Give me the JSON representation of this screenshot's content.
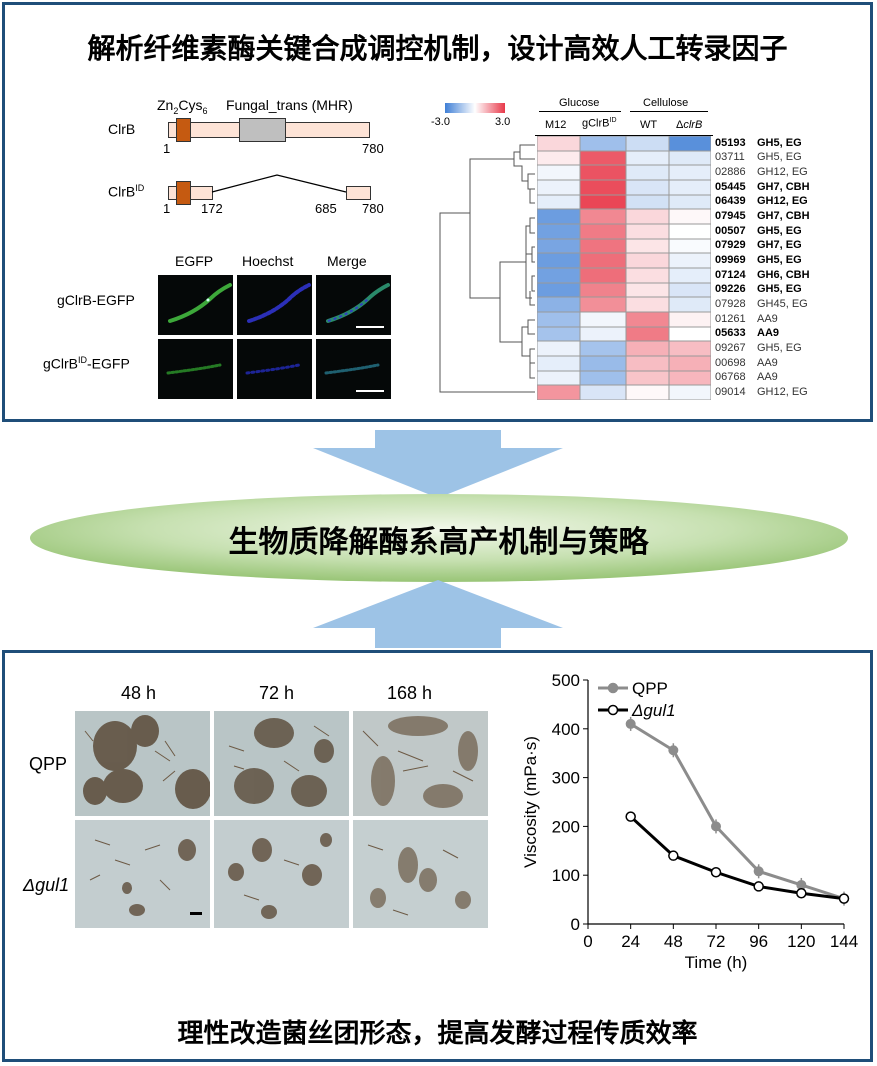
{
  "top_title": "解析纤维素酶关键合成调控机制，设计高效人工转录因子",
  "center_title": "生物质降解酶系高产机制与策略",
  "bottom_title": "理性改造菌丝团形态，提高发酵过程传质效率",
  "domain_diagram": {
    "zn_label": "Zn",
    "zn_sub": "2",
    "cys_label": "Cys",
    "cys_sub": "6",
    "fungal_label": "Fungal_trans (MHR)",
    "clrb_label": "ClrB",
    "clrbid_label": "ClrB",
    "clrbid_sup": "ID",
    "clrb_start": "1",
    "clrb_end": "780",
    "clrbid_start": "1",
    "clrbid_172": "172",
    "clrbid_685": "685",
    "clrbid_end": "780"
  },
  "microscopy": {
    "columns": [
      "EGFP",
      "Hoechst",
      "Merge"
    ],
    "row1": "gClrB-EGFP",
    "row2_prefix": "gClrB",
    "row2_sup": "ID",
    "row2_suffix": "-EGFP"
  },
  "heatmap": {
    "scale_min": "-3.0",
    "scale_max": "3.0",
    "group1": "Glucose",
    "group2": "Cellulose",
    "columns": [
      "M12",
      "gClrB",
      "WT",
      "Δ"
    ],
    "col2_sup": "ID",
    "col4_italic": "clrB",
    "rows": [
      {
        "id": "05193",
        "name": "GH5, EG",
        "bold": true,
        "v": [
          0.6,
          -1.5,
          -0.8,
          -2.6
        ]
      },
      {
        "id": "03711",
        "name": "GH5, EG",
        "bold": false,
        "v": [
          0.3,
          2.5,
          -0.4,
          -0.5
        ]
      },
      {
        "id": "02886",
        "name": "GH12, EG",
        "bold": false,
        "v": [
          -0.2,
          2.6,
          -0.5,
          -0.4
        ]
      },
      {
        "id": "05445",
        "name": "GH7, CBH",
        "bold": true,
        "v": [
          -0.3,
          2.7,
          -0.6,
          -0.4
        ]
      },
      {
        "id": "06439",
        "name": "GH12, EG",
        "bold": true,
        "v": [
          -0.4,
          2.8,
          -0.7,
          -0.5
        ]
      },
      {
        "id": "07945",
        "name": "GH7, CBH",
        "bold": true,
        "v": [
          -2.3,
          1.8,
          0.6,
          0.1
        ]
      },
      {
        "id": "00507",
        "name": "GH5, EG",
        "bold": true,
        "v": [
          -2.2,
          2.0,
          0.5,
          0.0
        ]
      },
      {
        "id": "07929",
        "name": "GH7, EG",
        "bold": true,
        "v": [
          -2.1,
          2.1,
          0.4,
          -0.1
        ]
      },
      {
        "id": "09969",
        "name": "GH5, EG",
        "bold": true,
        "v": [
          -2.3,
          2.2,
          0.6,
          -0.3
        ]
      },
      {
        "id": "07124",
        "name": "GH6, CBH",
        "bold": true,
        "v": [
          -2.2,
          2.2,
          0.5,
          -0.4
        ]
      },
      {
        "id": "09226",
        "name": "GH5, EG",
        "bold": true,
        "v": [
          -2.3,
          1.9,
          0.4,
          -0.6
        ]
      },
      {
        "id": "07928",
        "name": "GH45, EG",
        "bold": false,
        "v": [
          -1.8,
          1.7,
          0.5,
          -0.5
        ]
      },
      {
        "id": "01261",
        "name": "AA9",
        "bold": false,
        "v": [
          -1.5,
          -0.2,
          1.8,
          0.2
        ]
      },
      {
        "id": "05633",
        "name": "AA9",
        "bold": true,
        "v": [
          -1.4,
          -0.3,
          2.0,
          0.0
        ]
      },
      {
        "id": "09267",
        "name": "GH5, EG",
        "bold": false,
        "v": [
          -0.3,
          -1.4,
          1.2,
          1.0
        ]
      },
      {
        "id": "00698",
        "name": "AA9",
        "bold": false,
        "v": [
          -0.4,
          -1.6,
          1.0,
          1.2
        ]
      },
      {
        "id": "06768",
        "name": "AA9",
        "bold": false,
        "v": [
          -0.3,
          -1.5,
          0.9,
          1.1
        ]
      },
      {
        "id": "09014",
        "name": "GH12, EG",
        "bold": false,
        "v": [
          1.6,
          -0.6,
          0.1,
          -0.2
        ]
      }
    ]
  },
  "morphology": {
    "times": [
      "48 h",
      "72 h",
      "168 h"
    ],
    "row1": "QPP",
    "row2": "Δgul1"
  },
  "chart_data": {
    "type": "line",
    "xlabel": "Time (h)",
    "ylabel": "Viscosity (mPa·s)",
    "x": [
      24,
      48,
      72,
      96,
      120,
      144
    ],
    "xlim": [
      0,
      144
    ],
    "xticks": [
      0,
      24,
      48,
      72,
      96,
      120,
      144
    ],
    "ylim": [
      0,
      500
    ],
    "yticks": [
      0,
      100,
      200,
      300,
      400,
      500
    ],
    "legend_position": "top-left",
    "series": [
      {
        "name": "QPP",
        "color": "#8c8c8c",
        "marker": "filled",
        "values": [
          410,
          356,
          200,
          108,
          80,
          52
        ]
      },
      {
        "name": "Δgul1",
        "color": "#000000",
        "marker": "open",
        "values": [
          220,
          140,
          106,
          77,
          63,
          52
        ]
      }
    ]
  }
}
